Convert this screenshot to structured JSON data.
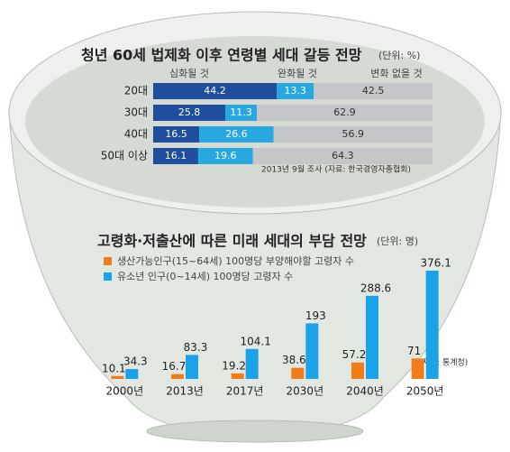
{
  "chart_data": [
    {
      "type": "stacked-hbar",
      "title": "청년 60세 법제화 이후 연령별 세대 갈등 전망",
      "subtitle": "(단위: %)",
      "categories": [
        "20대",
        "30대",
        "40대",
        "50대 이상"
      ],
      "series": [
        {
          "name": "심화될 것",
          "color": "#1f4e9c",
          "values": [
            44.2,
            25.8,
            16.5,
            16.1
          ]
        },
        {
          "name": "완화될 것",
          "color": "#29a8e0",
          "values": [
            13.3,
            11.3,
            26.6,
            19.6
          ]
        },
        {
          "name": "변화 없을 것",
          "color": "#c4c6c8",
          "values": [
            42.5,
            62.9,
            56.9,
            64.3
          ]
        }
      ],
      "note": "2013년 9월 조사 (자료: 한국경영자총협회)"
    },
    {
      "type": "grouped-bar",
      "title": "고령화·저출산에 따른 미래 세대의 부담 전망",
      "subtitle": "(단위: 명)",
      "categories": [
        "2000년",
        "2013년",
        "2017년",
        "2030년",
        "2040년",
        "2050년"
      ],
      "series": [
        {
          "name": "생산가능인구(15~64세) 100명당 부양해야할 고령자 수",
          "color": "#f07d1a",
          "values": [
            10.1,
            16.7,
            19.2,
            38.6,
            57.2,
            71
          ]
        },
        {
          "name": "유소년 인구(0~14세) 100명당 고령자 수",
          "color": "#1aa3e8",
          "values": [
            34.3,
            83.3,
            104.1,
            193,
            288.6,
            376.1
          ]
        }
      ],
      "note": "(자료: 통계청)"
    }
  ]
}
